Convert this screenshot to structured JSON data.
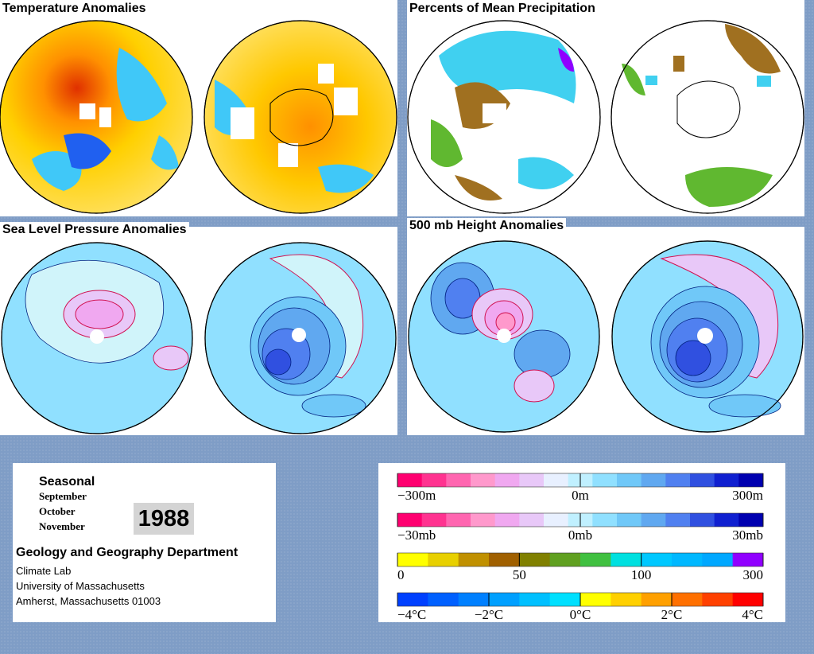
{
  "panels": {
    "temperature": {
      "title": "Temperature Anomalies"
    },
    "precipitation": {
      "title": "Percents of Mean Precipitation"
    },
    "slp": {
      "title": "Sea Level Pressure Anomalies"
    },
    "height500": {
      "title": "500 mb Height Anomalies"
    }
  },
  "info": {
    "season": "Seasonal",
    "months": [
      "September",
      "October",
      "November"
    ],
    "year": "1988",
    "department": "Geology and Geography Department",
    "address": [
      "Climate Lab",
      "University of Massachusetts",
      "Amherst, Massachusetts 01003"
    ]
  },
  "legends": [
    {
      "id": "height",
      "labels": [
        "−300m",
        "0m",
        "300m"
      ],
      "colors": [
        "#ff0070",
        "#ff3390",
        "#ff66b0",
        "#ff99cc",
        "#f0a8f0",
        "#e8c8f8",
        "#e8f0ff",
        "#c0f0ff",
        "#90e0ff",
        "#70c8f8",
        "#60a8f0",
        "#5080f0",
        "#3050e0",
        "#1020d0",
        "#0000b0"
      ]
    },
    {
      "id": "pressure",
      "labels": [
        "−30mb",
        "0mb",
        "30mb"
      ],
      "colors": [
        "#ff0070",
        "#ff3390",
        "#ff66b0",
        "#ff99cc",
        "#f0a8f0",
        "#e8c8f8",
        "#e8f0ff",
        "#c0f0ff",
        "#90e0ff",
        "#70c8f8",
        "#60a8f0",
        "#5080f0",
        "#3050e0",
        "#1020d0",
        "#0000b0"
      ]
    },
    {
      "id": "precip",
      "labels": [
        "0",
        "50",
        "100",
        "300"
      ],
      "colors": [
        "#ffff00",
        "#e8d000",
        "#c09000",
        "#a06000",
        "#808000",
        "#60a020",
        "#40c040",
        "#00e0e0",
        "#00c8ff",
        "#00b8ff",
        "#00a8ff",
        "#9000ff"
      ]
    },
    {
      "id": "temp",
      "labels": [
        "−4°C",
        "−2°C",
        "0°C",
        "2°C",
        "4°C"
      ],
      "colors": [
        "#0040ff",
        "#0060ff",
        "#0080ff",
        "#00a0ff",
        "#00c0ff",
        "#00e0ff",
        "#ffff00",
        "#ffd000",
        "#ffa000",
        "#ff7000",
        "#ff4000",
        "#ff0000"
      ]
    }
  ],
  "colors": {
    "background": "#7f9dc6",
    "zero_band": "#d0f4fa",
    "positive_contour": "#d01050",
    "negative_contour": "#002080"
  }
}
